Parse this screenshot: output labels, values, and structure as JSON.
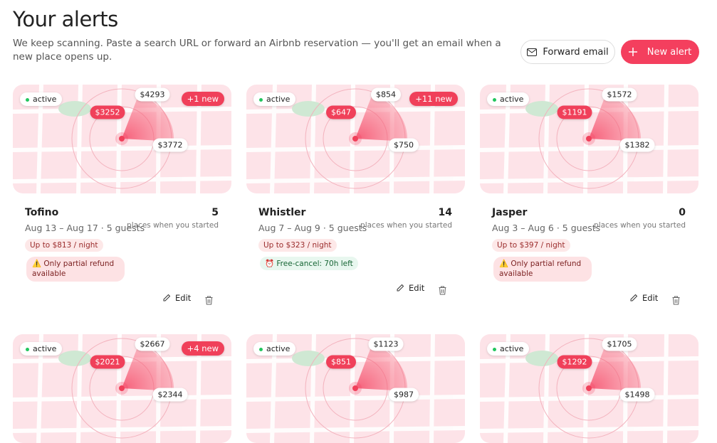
{
  "header": {
    "title": "Your alerts",
    "subtitle": "We keep scanning. Paste a search URL or forward an Airbnb reservation — you'll get an email when a new place opens up.",
    "forward_button": "Forward email",
    "new_button": "New alert"
  },
  "cards": [
    {
      "status": "active",
      "badge": "+1 new",
      "pins": {
        "top": "$4293",
        "left": "$3252",
        "right": "$3772"
      },
      "name": "Tofino",
      "dates": "Aug 13 – Aug 17 · 5 guests",
      "count": 5,
      "count_label": "places when you started",
      "price_cap": "Up to $813 / night",
      "warning": "⚠️ Only partial refund available",
      "edit": "Edit"
    },
    {
      "status": "active",
      "badge": "+11 new",
      "pins": {
        "top": "$854",
        "left": "$647",
        "right": "$750"
      },
      "name": "Whistler",
      "dates": "Aug 7 – Aug 9 · 5 guests",
      "count": 14,
      "count_label": "places when you started",
      "price_cap": "Up to $323 / night",
      "free_cancel": "⏰ Free-cancel: 70h left",
      "edit": "Edit"
    },
    {
      "status": "active",
      "pins": {
        "top": "$1572",
        "left": "$1191",
        "right": "$1382"
      },
      "name": "Jasper",
      "dates": "Aug 3 – Aug 6 · 5 guests",
      "count": 0,
      "count_label": "places when you started",
      "price_cap": "Up to $397 / night",
      "warning": "⚠️ Only partial refund available",
      "edit": "Edit"
    },
    {
      "status": "active",
      "badge": "+4 new",
      "pins": {
        "top": "$2667",
        "left": "$2021",
        "right": "$2344"
      }
    },
    {
      "status": "active",
      "pins": {
        "top": "$1123",
        "left": "$851",
        "right": "$987"
      }
    },
    {
      "status": "active",
      "pins": {
        "top": "$1705",
        "left": "$1292",
        "right": "$1498"
      }
    }
  ]
}
